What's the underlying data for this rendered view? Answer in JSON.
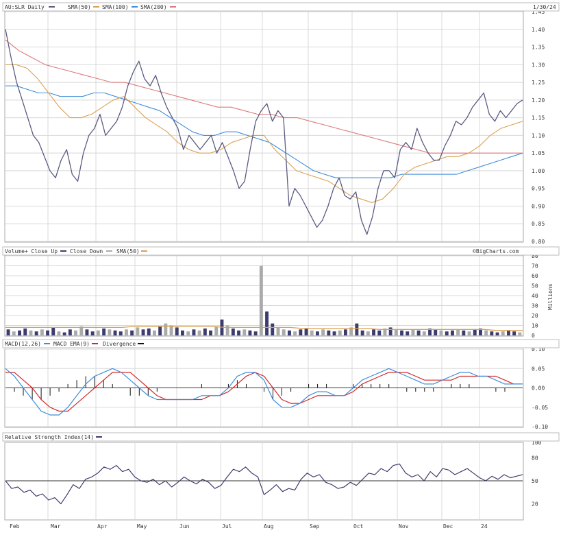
{
  "header": {
    "symbol_label": "AU:SLR Daily",
    "legend": [
      {
        "label": "SMA(50)",
        "color": "#dca050"
      },
      {
        "label": "SMA(100)",
        "color": "#3c8cdc"
      },
      {
        "label": "SMA(200)",
        "color": "#dc7878"
      }
    ],
    "price_color": "#5a5a82",
    "date": "1/30/24"
  },
  "volume_header": {
    "legend": [
      {
        "label": "Volume+ Close Up",
        "color": "#3c3c6e"
      },
      {
        "label": "Close Down",
        "color": "#aaaaaa"
      },
      {
        "label": "SMA(50)",
        "color": "#dca050"
      }
    ],
    "watermark": "©BigCharts.com",
    "unit_label": "Millions"
  },
  "macd_header": {
    "legend": [
      {
        "label": "MACD(12,26)",
        "color": "#3c8cdc"
      },
      {
        "label": "MACD EMA(9)",
        "color": "#d22828"
      },
      {
        "label": "Divergence",
        "color": "#111111"
      }
    ]
  },
  "rsi_header": {
    "legend": [
      {
        "label": "Relative Strength Index(14)",
        "color": "#3c3c6e"
      }
    ]
  },
  "chart_data": [
    {
      "type": "line",
      "title": "AU:SLR Daily",
      "x_labels": [
        "Feb",
        "Mar",
        "Apr",
        "May",
        "Jun",
        "Jul",
        "Aug",
        "Sep",
        "Oct",
        "Nov",
        "Dec",
        "24"
      ],
      "ylim": [
        0.8,
        1.45
      ],
      "y_ticks": [
        0.8,
        0.85,
        0.9,
        0.95,
        1.0,
        1.05,
        1.1,
        1.15,
        1.2,
        1.25,
        1.3,
        1.35,
        1.4,
        1.45
      ],
      "series": [
        {
          "name": "AU:SLR Daily",
          "color": "#5a5a82",
          "values": [
            1.4,
            1.32,
            1.25,
            1.2,
            1.15,
            1.1,
            1.08,
            1.04,
            1.0,
            0.98,
            1.03,
            1.06,
            0.99,
            0.97,
            1.05,
            1.1,
            1.12,
            1.16,
            1.1,
            1.12,
            1.14,
            1.18,
            1.24,
            1.28,
            1.31,
            1.26,
            1.24,
            1.27,
            1.22,
            1.18,
            1.15,
            1.12,
            1.06,
            1.1,
            1.08,
            1.06,
            1.08,
            1.1,
            1.05,
            1.08,
            1.04,
            1.0,
            0.95,
            0.97,
            1.06,
            1.14,
            1.17,
            1.19,
            1.14,
            1.17,
            1.15,
            0.9,
            0.95,
            0.93,
            0.9,
            0.87,
            0.84,
            0.86,
            0.9,
            0.95,
            0.98,
            0.93,
            0.92,
            0.94,
            0.86,
            0.82,
            0.87,
            0.95,
            1.0,
            1.0,
            0.98,
            1.06,
            1.08,
            1.06,
            1.12,
            1.08,
            1.05,
            1.03,
            1.03,
            1.07,
            1.1,
            1.14,
            1.13,
            1.15,
            1.18,
            1.2,
            1.22,
            1.16,
            1.14,
            1.17,
            1.15,
            1.17,
            1.19,
            1.2
          ]
        },
        {
          "name": "SMA(50)",
          "color": "#dca050",
          "values": [
            1.3,
            1.3,
            1.29,
            1.26,
            1.22,
            1.18,
            1.15,
            1.15,
            1.16,
            1.18,
            1.2,
            1.21,
            1.18,
            1.15,
            1.13,
            1.11,
            1.08,
            1.06,
            1.05,
            1.05,
            1.06,
            1.08,
            1.09,
            1.1,
            1.1,
            1.06,
            1.03,
            1.0,
            0.99,
            0.98,
            0.97,
            0.95,
            0.93,
            0.92,
            0.91,
            0.92,
            0.95,
            0.99,
            1.01,
            1.02,
            1.03,
            1.04,
            1.04,
            1.05,
            1.07,
            1.1,
            1.12,
            1.13,
            1.14
          ]
        },
        {
          "name": "SMA(100)",
          "color": "#3c8cdc",
          "values": [
            1.24,
            1.24,
            1.23,
            1.22,
            1.22,
            1.21,
            1.21,
            1.21,
            1.22,
            1.22,
            1.21,
            1.2,
            1.19,
            1.18,
            1.17,
            1.15,
            1.13,
            1.11,
            1.1,
            1.1,
            1.11,
            1.11,
            1.1,
            1.09,
            1.08,
            1.06,
            1.04,
            1.02,
            1.0,
            0.99,
            0.98,
            0.98,
            0.98,
            0.98,
            0.98,
            0.98,
            0.99,
            0.99,
            0.99,
            0.99,
            0.99,
            0.99,
            1.0,
            1.01,
            1.02,
            1.03,
            1.04,
            1.05
          ]
        },
        {
          "name": "SMA(200)",
          "color": "#dc7878",
          "values": [
            1.37,
            1.34,
            1.32,
            1.3,
            1.29,
            1.28,
            1.27,
            1.26,
            1.25,
            1.25,
            1.24,
            1.23,
            1.22,
            1.21,
            1.2,
            1.19,
            1.18,
            1.18,
            1.17,
            1.16,
            1.16,
            1.15,
            1.15,
            1.14,
            1.13,
            1.12,
            1.11,
            1.1,
            1.09,
            1.08,
            1.07,
            1.06,
            1.05,
            1.05,
            1.05,
            1.05,
            1.05,
            1.05,
            1.05,
            1.05
          ]
        }
      ]
    },
    {
      "type": "bar",
      "title": "Volume+ Close Up / Close Down",
      "ylabel": "Millions",
      "ylim": [
        0,
        80
      ],
      "y_ticks": [
        0,
        10,
        20,
        30,
        40,
        50,
        60,
        70,
        80
      ],
      "series": [
        {
          "name": "Volume",
          "values": [
            6,
            4,
            5,
            7,
            5,
            4,
            6,
            5,
            8,
            4,
            3,
            6,
            5,
            9,
            6,
            4,
            5,
            7,
            6,
            5,
            4,
            6,
            5,
            8,
            6,
            7,
            5,
            9,
            12,
            10,
            8,
            5,
            4,
            6,
            5,
            7,
            5,
            9,
            16,
            10,
            7,
            5,
            6,
            5,
            4,
            70,
            24,
            12,
            8,
            6,
            5,
            4,
            6,
            7,
            5,
            4,
            6,
            5,
            4,
            5,
            6,
            8,
            12,
            5,
            4,
            6,
            5,
            7,
            8,
            6,
            5,
            4,
            6,
            5,
            4,
            7,
            6,
            5,
            4,
            5,
            6,
            5,
            4,
            6,
            7,
            5,
            4,
            3,
            4,
            5,
            4,
            3
          ]
        },
        {
          "name": "Close Up flags",
          "values": [
            1,
            0,
            1,
            1,
            0,
            1,
            0,
            1,
            1,
            0,
            1,
            1,
            0,
            0,
            1,
            1,
            0,
            1,
            0,
            1,
            1,
            0,
            1,
            0,
            1,
            1,
            0,
            1,
            0,
            0,
            1,
            1,
            0,
            1,
            0,
            1,
            1,
            0,
            1,
            0,
            1,
            1,
            0,
            1,
            1,
            0,
            1,
            1,
            0,
            0,
            1,
            0,
            1,
            1,
            0,
            1,
            0,
            1,
            1,
            0,
            1,
            0,
            1,
            1,
            0,
            1,
            1,
            0,
            1,
            0,
            1,
            1,
            0,
            1,
            0,
            1,
            1,
            0,
            1,
            1,
            0,
            1,
            0,
            1,
            1,
            0,
            1,
            1,
            0,
            1,
            1,
            0
          ]
        },
        {
          "name": "SMA(50)",
          "color": "#dca050",
          "values": [
            8,
            8,
            8,
            8,
            8,
            8,
            8,
            8,
            8,
            8,
            9,
            9,
            9,
            9,
            9,
            9,
            9,
            8,
            8,
            8,
            8,
            8,
            8,
            7,
            7,
            7,
            7,
            7,
            7,
            6,
            6,
            6,
            6,
            6,
            6,
            6,
            6,
            6,
            5,
            5,
            5
          ]
        }
      ]
    },
    {
      "type": "line",
      "title": "MACD(12,26)",
      "ylim": [
        -0.1,
        0.1
      ],
      "y_ticks": [
        -0.1,
        -0.05,
        0.0,
        0.05,
        0.1
      ],
      "series": [
        {
          "name": "MACD(12,26)",
          "color": "#3c8cdc",
          "values": [
            0.05,
            0.03,
            0.0,
            -0.03,
            -0.06,
            -0.07,
            -0.07,
            -0.05,
            -0.02,
            0.01,
            0.03,
            0.04,
            0.05,
            0.04,
            0.02,
            0.0,
            -0.02,
            -0.03,
            -0.03,
            -0.03,
            -0.03,
            -0.03,
            -0.02,
            -0.02,
            -0.02,
            0.0,
            0.03,
            0.04,
            0.04,
            0.02,
            -0.03,
            -0.05,
            -0.05,
            -0.04,
            -0.02,
            -0.01,
            -0.01,
            -0.02,
            -0.02,
            0.0,
            0.02,
            0.03,
            0.04,
            0.05,
            0.04,
            0.03,
            0.02,
            0.01,
            0.01,
            0.02,
            0.03,
            0.04,
            0.04,
            0.03,
            0.03,
            0.02,
            0.01,
            0.01,
            0.01
          ]
        },
        {
          "name": "MACD EMA(9)",
          "color": "#d22828",
          "values": [
            0.04,
            0.04,
            0.02,
            0.0,
            -0.03,
            -0.05,
            -0.06,
            -0.06,
            -0.04,
            -0.02,
            0.0,
            0.02,
            0.04,
            0.04,
            0.04,
            0.02,
            0.0,
            -0.02,
            -0.03,
            -0.03,
            -0.03,
            -0.03,
            -0.03,
            -0.02,
            -0.02,
            -0.01,
            0.01,
            0.03,
            0.04,
            0.03,
            0.0,
            -0.03,
            -0.04,
            -0.04,
            -0.03,
            -0.02,
            -0.02,
            -0.02,
            -0.02,
            -0.01,
            0.01,
            0.02,
            0.03,
            0.04,
            0.04,
            0.04,
            0.03,
            0.02,
            0.02,
            0.02,
            0.02,
            0.03,
            0.03,
            0.03,
            0.03,
            0.03,
            0.02,
            0.01,
            0.01
          ]
        },
        {
          "name": "Divergence",
          "color": "#111111",
          "values": [
            0.0,
            -0.01,
            -0.02,
            -0.03,
            -0.03,
            -0.02,
            -0.01,
            0.01,
            0.02,
            0.03,
            0.03,
            0.02,
            0.01,
            0.0,
            -0.02,
            -0.02,
            -0.02,
            -0.01,
            0.0,
            0.0,
            0.0,
            0.0,
            0.01,
            0.0,
            0.0,
            0.01,
            0.02,
            0.01,
            0.0,
            -0.01,
            -0.03,
            -0.02,
            -0.01,
            0.0,
            0.01,
            0.01,
            0.01,
            0.0,
            0.0,
            0.01,
            0.01,
            0.01,
            0.01,
            0.01,
            0.0,
            -0.01,
            -0.01,
            -0.01,
            -0.01,
            0.0,
            0.01,
            0.01,
            0.01,
            0.0,
            0.0,
            -0.01,
            -0.01,
            0.0,
            0.0
          ]
        }
      ]
    },
    {
      "type": "line",
      "title": "Relative Strength Index(14)",
      "ylim": [
        0,
        100
      ],
      "y_ticks": [
        20,
        50,
        80,
        100
      ],
      "series": [
        {
          "name": "Relative Strength Index(14)",
          "color": "#3c3c6e",
          "values": [
            50,
            40,
            42,
            35,
            38,
            30,
            33,
            25,
            28,
            20,
            32,
            45,
            40,
            52,
            55,
            60,
            68,
            65,
            70,
            62,
            65,
            55,
            50,
            48,
            52,
            45,
            50,
            42,
            48,
            55,
            50,
            46,
            52,
            48,
            40,
            44,
            55,
            65,
            62,
            68,
            60,
            55,
            32,
            38,
            45,
            36,
            40,
            38,
            52,
            60,
            55,
            58,
            48,
            45,
            40,
            42,
            48,
            44,
            52,
            60,
            58,
            66,
            62,
            70,
            72,
            60,
            55,
            58,
            50,
            62,
            55,
            66,
            64,
            58,
            62,
            66,
            60,
            54,
            50,
            56,
            52,
            58,
            54,
            56,
            58
          ]
        }
      ]
    }
  ]
}
